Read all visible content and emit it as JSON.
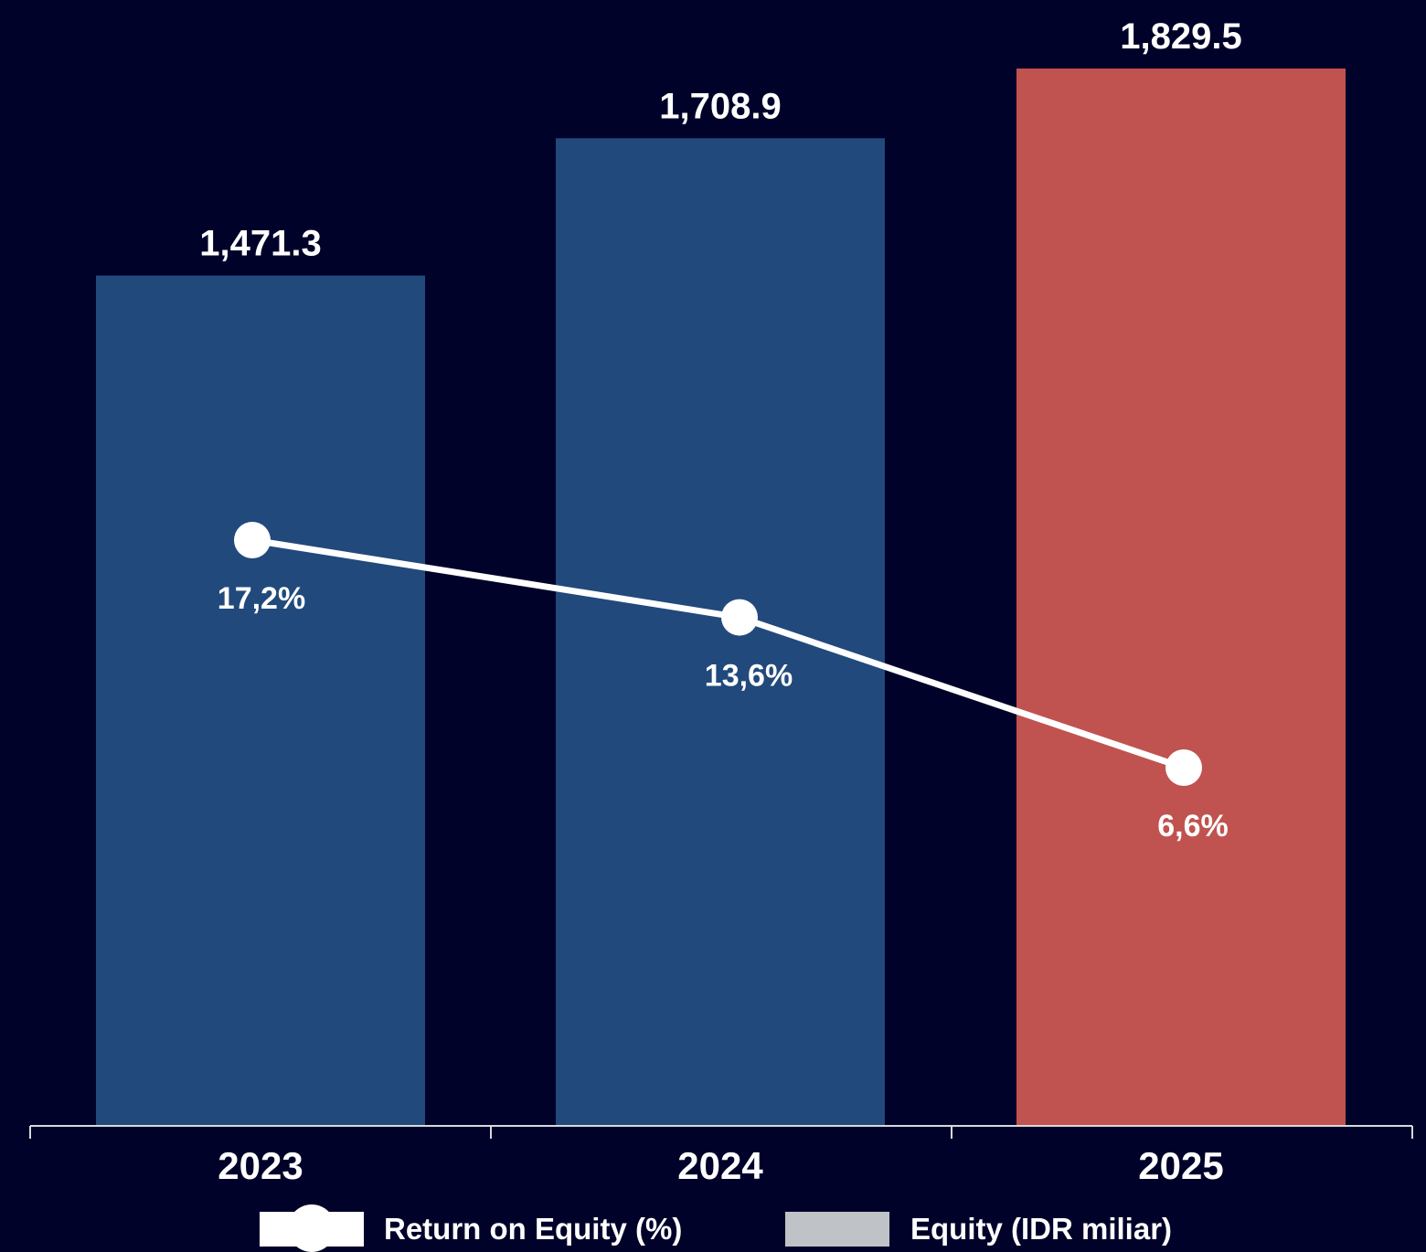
{
  "chart_data": {
    "type": "bar",
    "categories": [
      "2023",
      "2024",
      "2025"
    ],
    "series": [
      {
        "name": "Equity (IDR miliar)",
        "type": "bar",
        "values": [
          1471.3,
          1708.9,
          1829.5
        ],
        "value_labels": [
          "1,471.3",
          "1,708.9",
          "1,829.5"
        ],
        "colors": [
          "#21497c",
          "#21497c",
          "#c0534f"
        ]
      },
      {
        "name": "Return on Equity (%)",
        "type": "line",
        "values": [
          17.2,
          13.6,
          6.6
        ],
        "value_labels": [
          "17,2%",
          "13,6%",
          "6,6%"
        ],
        "color": "#ffffff"
      }
    ],
    "legend": {
      "placement": "bottom",
      "items": [
        {
          "label": "Return on Equity (%)",
          "swatch_color": "#ffffff"
        },
        {
          "label": "Equity (IDR miliar)",
          "swatch_color": "#bfc3c7"
        }
      ]
    },
    "grid": false,
    "background": "#00022a",
    "axis_color": "#d6d8dc"
  }
}
